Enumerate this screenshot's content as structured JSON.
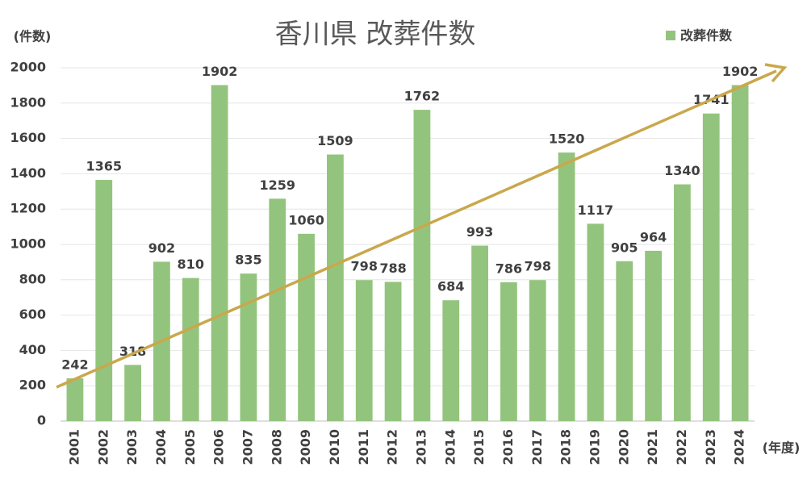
{
  "chart_data": {
    "type": "bar",
    "title": "香川県 改葬件数",
    "y_label": "(件数)",
    "x_label": "(年度)",
    "categories": [
      "2001",
      "2002",
      "2003",
      "2004",
      "2005",
      "2006",
      "2007",
      "2008",
      "2009",
      "2010",
      "2011",
      "2012",
      "2013",
      "2014",
      "2015",
      "2016",
      "2017",
      "2018",
      "2019",
      "2020",
      "2021",
      "2022",
      "2023",
      "2024"
    ],
    "series": [
      {
        "name": "改葬件数",
        "color": "#93c47d",
        "values": [
          242,
          1365,
          318,
          902,
          810,
          1902,
          835,
          1259,
          1060,
          1509,
          798,
          788,
          1762,
          684,
          993,
          786,
          798,
          1520,
          1117,
          905,
          964,
          1340,
          1741,
          1902
        ]
      }
    ],
    "ylim": [
      0,
      2000
    ],
    "yticks": [
      0,
      200,
      400,
      600,
      800,
      1000,
      1200,
      1400,
      1600,
      1800,
      2000
    ],
    "grid": true,
    "legend": "top-right"
  }
}
